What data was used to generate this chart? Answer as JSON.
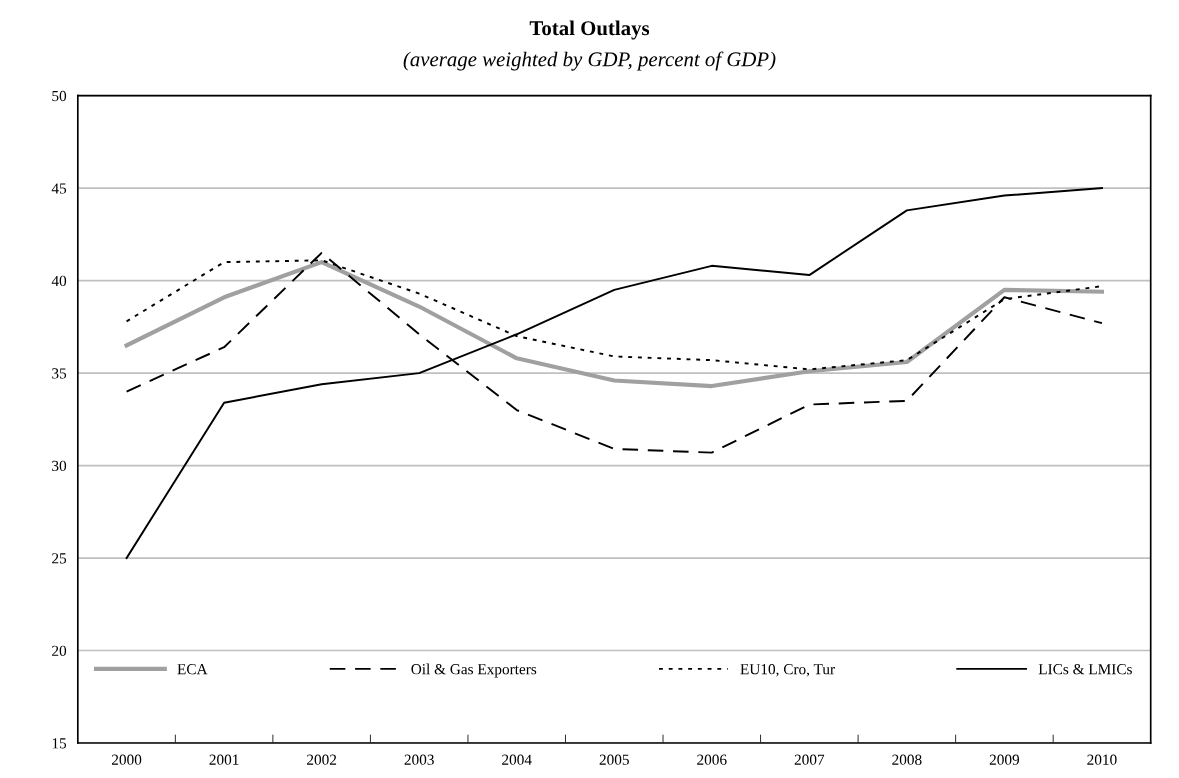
{
  "chart_data": {
    "type": "line",
    "title": "Total Outlays",
    "subtitle": "(average weighted by GDP, percent of GDP)",
    "categories": [
      "2000",
      "2001",
      "2002",
      "2003",
      "2004",
      "2005",
      "2006",
      "2007",
      "2008",
      "2009",
      "2010"
    ],
    "series": [
      {
        "name": "ECA",
        "color": "#a0a0a0",
        "line_style": "solid",
        "values": [
          36.5,
          39.1,
          41.0,
          38.6,
          35.8,
          34.6,
          34.3,
          35.1,
          35.6,
          39.5,
          39.4
        ]
      },
      {
        "name": "Oil & Gas Exporters",
        "color": "#000000",
        "line_style": "dashed",
        "values": [
          34.0,
          36.4,
          41.5,
          37.1,
          33.0,
          30.9,
          30.7,
          33.3,
          33.5,
          39.1,
          37.7
        ]
      },
      {
        "name": "EU10, Cro, Tur",
        "color": "#000000",
        "line_style": "dotted",
        "values": [
          37.8,
          41.0,
          41.1,
          39.3,
          37.0,
          35.9,
          35.7,
          35.2,
          35.7,
          39.0,
          39.7
        ]
      },
      {
        "name": "LICs & LMICs",
        "color": "#000000",
        "line_style": "solid",
        "values": [
          25.0,
          33.4,
          34.4,
          35.0,
          37.1,
          39.5,
          40.8,
          40.3,
          43.8,
          44.6,
          45.0
        ]
      }
    ],
    "ylim": [
      15,
      50
    ],
    "yticks": [
      15,
      20,
      25,
      30,
      35,
      40,
      45,
      50
    ],
    "grid": "y",
    "legend": "bottom",
    "marker": "none"
  }
}
